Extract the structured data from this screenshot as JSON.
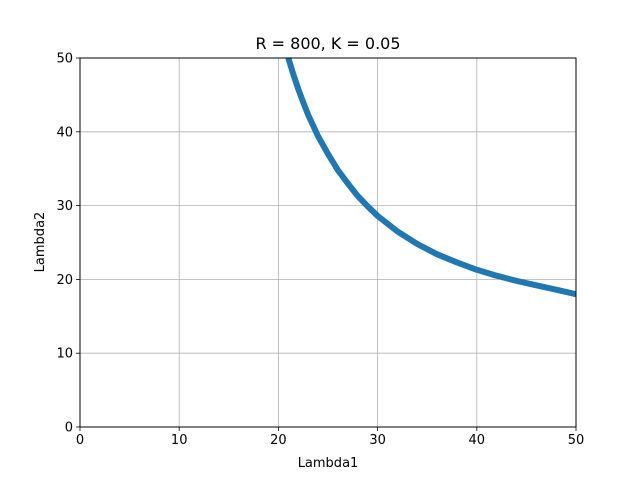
{
  "chart_data": {
    "type": "line",
    "title": "R = 800, K = 0.05",
    "xlabel": "Lambda1",
    "ylabel": "Lambda2",
    "xlim": [
      0,
      50
    ],
    "ylim": [
      0,
      50
    ],
    "xticks": [
      0,
      10,
      20,
      30,
      40,
      50
    ],
    "yticks": [
      0,
      10,
      20,
      30,
      40,
      50
    ],
    "grid": true,
    "series": [
      {
        "color": "#1f77b4",
        "x": [
          21.0,
          21.5,
          22.0,
          22.5,
          23.0,
          24.0,
          25.0,
          26.0,
          27.0,
          28.0,
          29.0,
          30.0,
          32.0,
          34.0,
          36.0,
          38.0,
          40.0,
          42.0,
          44.0,
          46.0,
          48.0,
          50.0
        ],
        "y": [
          50.0,
          47.8,
          45.8,
          44.0,
          42.3,
          39.4,
          37.0,
          34.8,
          33.0,
          31.3,
          29.9,
          28.6,
          26.5,
          24.8,
          23.4,
          22.3,
          21.3,
          20.5,
          19.8,
          19.2,
          18.6,
          18.0
        ]
      }
    ]
  }
}
